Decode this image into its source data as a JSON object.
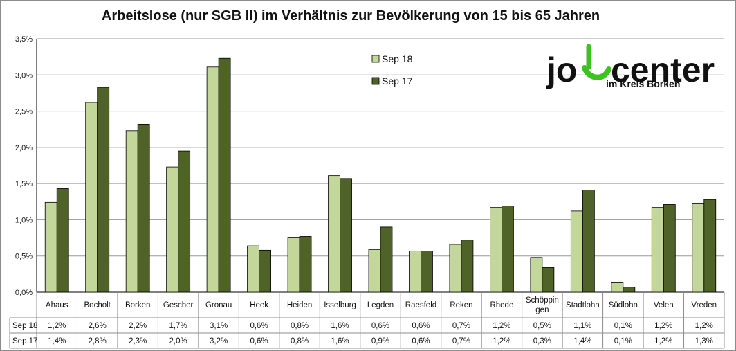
{
  "chart_data": {
    "type": "bar",
    "title": "Arbeitslose (nur SGB II) im Verhältnis zur Bevölkerung von 15 bis 65 Jahren",
    "categories": [
      "Ahaus",
      "Bocholt",
      "Borken",
      "Gescher",
      "Gronau",
      "Heek",
      "Heiden",
      "Isselburg",
      "Legden",
      "Raesfeld",
      "Reken",
      "Rhede",
      "Schöppingen",
      "Stadtlohn",
      "Südlohn",
      "Velen",
      "Vreden"
    ],
    "category_labels": [
      [
        "Ahaus"
      ],
      [
        "Bocholt"
      ],
      [
        "Borken"
      ],
      [
        "Gescher"
      ],
      [
        "Gronau"
      ],
      [
        "Heek"
      ],
      [
        "Heiden"
      ],
      [
        "Isselburg"
      ],
      [
        "Legden"
      ],
      [
        "Raesfeld"
      ],
      [
        "Reken"
      ],
      [
        "Rhede"
      ],
      [
        "Schöppin",
        "gen"
      ],
      [
        "Stadtlohn"
      ],
      [
        "Südlohn"
      ],
      [
        "Velen"
      ],
      [
        "Vreden"
      ]
    ],
    "series": [
      {
        "name": "Sep 18",
        "color": "#c4d79b",
        "values": [
          1.24,
          2.62,
          2.23,
          1.73,
          3.11,
          0.64,
          0.75,
          1.61,
          0.59,
          0.57,
          0.66,
          1.17,
          0.48,
          1.12,
          0.13,
          1.17,
          1.23
        ],
        "labels": [
          "1,2%",
          "2,6%",
          "2,2%",
          "1,7%",
          "3,1%",
          "0,6%",
          "0,8%",
          "1,6%",
          "0,6%",
          "0,6%",
          "0,7%",
          "1,2%",
          "0,5%",
          "1,1%",
          "0,1%",
          "1,2%",
          "1,2%"
        ]
      },
      {
        "name": "Sep 17",
        "color": "#4f6228",
        "values": [
          1.43,
          2.83,
          2.32,
          1.95,
          3.23,
          0.58,
          0.77,
          1.57,
          0.9,
          0.57,
          0.72,
          1.19,
          0.34,
          1.41,
          0.07,
          1.21,
          1.28
        ],
        "labels": [
          "1,4%",
          "2,8%",
          "2,3%",
          "2,0%",
          "3,2%",
          "0,6%",
          "0,8%",
          "1,6%",
          "0,9%",
          "0,6%",
          "0,7%",
          "1,2%",
          "0,3%",
          "1,4%",
          "0,1%",
          "1,2%",
          "1,3%"
        ]
      }
    ],
    "ylim": [
      0,
      3.5
    ],
    "yticks": [
      "0,0%",
      "0,5%",
      "1,0%",
      "1,5%",
      "2,0%",
      "2,5%",
      "3,0%",
      "3,5%"
    ],
    "grid": true,
    "legend_position": "top-center",
    "data_table": true
  },
  "logo": {
    "word": "jobcenter",
    "subtitle": "im Kreis Borken",
    "colors": {
      "text": "#111111",
      "accent": "#3ec21f"
    }
  }
}
